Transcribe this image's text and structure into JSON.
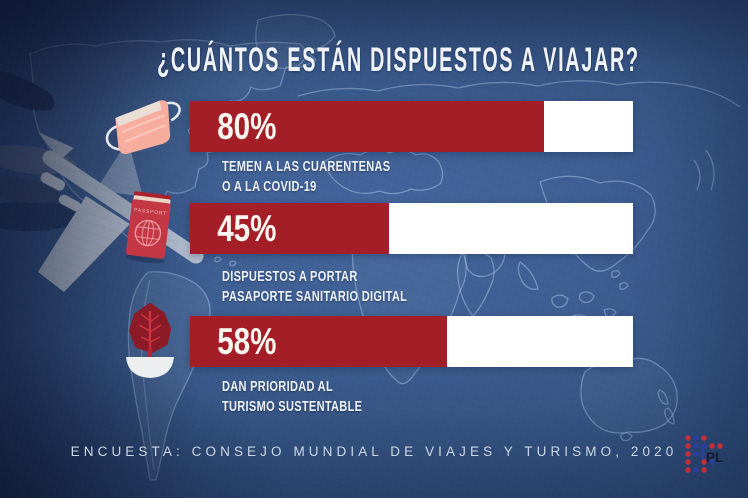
{
  "chart_data": {
    "type": "bar",
    "orientation": "horizontal",
    "title": "¿CUÁNTOS ESTÁN DISPUESTOS A VIAJAR?",
    "unit": "%",
    "xlim": [
      0,
      100
    ],
    "categories": [
      "TEMEN A LAS CUARENTENAS O A LA COVID-19",
      "DISPUESTOS A PORTAR PASAPORTE SANITARIO DIGITAL",
      "DAN PRIORIDAD AL TURISMO SUSTENTABLE"
    ],
    "values": [
      80,
      45,
      58
    ],
    "bars": [
      {
        "value": 80,
        "label_value": "80%",
        "label_lines": [
          "TEMEN A LAS CUARENTENAS",
          "O A LA COVID-19"
        ],
        "icon": "face-mask-icon"
      },
      {
        "value": 45,
        "label_value": "45%",
        "label_lines": [
          "DISPUESTOS A PORTAR",
          "PASAPORTE SANITARIO DIGITAL"
        ],
        "icon": "passport-icon"
      },
      {
        "value": 58,
        "label_value": "58%",
        "label_lines": [
          "DAN PRIORIDAD AL",
          "TURISMO SUSTENTABLE"
        ],
        "icon": "tree-in-bowl-icon"
      }
    ],
    "bar_color": "#a31e26",
    "track_color": "#ffffff",
    "source": "ENCUESTA: CONSEJO MUNDIAL DE VIAJES Y TURISMO, 2020",
    "legend": null,
    "grid": false
  },
  "icons": {
    "passport_label": "PASSPORT"
  },
  "logo": {
    "text": "PL",
    "dot_red": "#c5303c",
    "dot_blue": "#2b3f9e",
    "text_color": "#131c33"
  },
  "colors": {
    "background": "#3b5b8d",
    "map_outline": "#aec5e7",
    "bar_red": "#a31e26",
    "text_primary": "#f0f4fa",
    "text_footer": "#ccd7e5"
  }
}
